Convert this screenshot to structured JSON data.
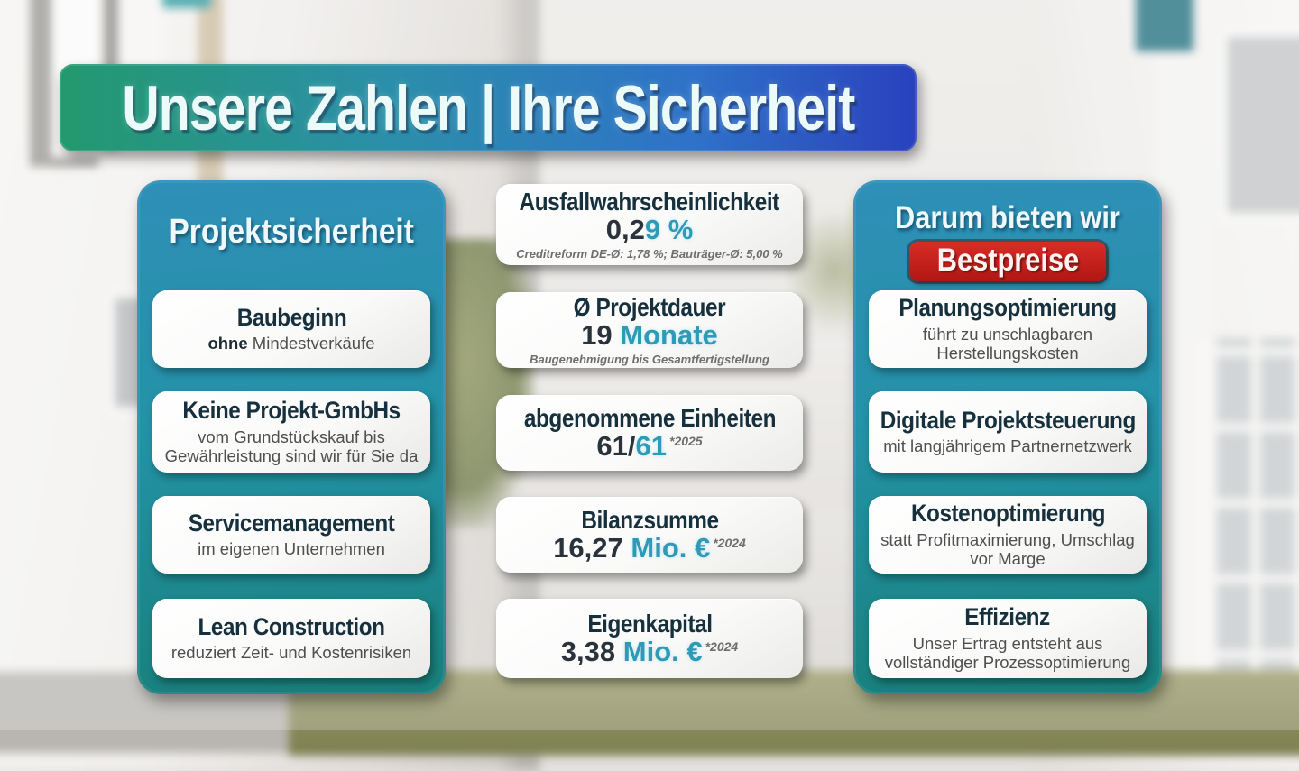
{
  "title": "Unsere Zahlen | Ihre Sicherheit",
  "colors": {
    "banner_gradient_start": "#23996e",
    "banner_gradient_end": "#2a41bd",
    "panel_gradient_top": "#2f8fb8",
    "panel_gradient_bottom": "#18807b",
    "card_heading_dark": "#16303d",
    "accent_teal": "#2e9ab6",
    "value_dark": "#2a323c",
    "badge_red": "#c5211f",
    "subtitle_gray": "#4f4f4f"
  },
  "left_panel": {
    "heading": "Projektsicherheit",
    "cards": [
      {
        "title": "Baubeginn",
        "subtitle_bold": "ohne",
        "subtitle": " Mindestverkäufe"
      },
      {
        "title": "Keine Projekt-GmbHs",
        "subtitle": "vom Grundstückskauf bis Gewährleistung sind wir für Sie da"
      },
      {
        "title": "Servicemanagement",
        "subtitle": "im eigenen Unternehmen"
      },
      {
        "title": "Lean Construction",
        "subtitle": "reduziert Zeit- und Kostenrisiken"
      }
    ]
  },
  "middle": {
    "cards": [
      {
        "title": "Ausfallwahrscheinlichkeit",
        "value_dark": "0,2",
        "value_accent": "9 %",
        "superscript": "",
        "footnote": "Creditreform DE-Ø: 1,78 %; Bauträger-Ø: 5,00 %"
      },
      {
        "title": "Ø Projektdauer",
        "value_dark": "19",
        "value_accent": " Monate",
        "superscript": "",
        "footnote": "Baugenehmigung bis Gesamtfertigstellung"
      },
      {
        "title": "abgenommene Einheiten",
        "value_dark": "61/",
        "value_accent": "61",
        "superscript": "*2025",
        "footnote": ""
      },
      {
        "title": "Bilanzsumme",
        "value_dark": "16,27",
        "value_accent": " Mio. €",
        "superscript": "*2024",
        "footnote": ""
      },
      {
        "title": "Eigenkapital",
        "value_dark": "3,38",
        "value_accent": " Mio. €",
        "superscript": "*2024",
        "footnote": ""
      }
    ]
  },
  "right_panel": {
    "heading_line1": "Darum bieten wir",
    "heading_badge": "Bestpreise",
    "cards": [
      {
        "title": "Planungsoptimierung",
        "subtitle": "führt zu unschlagbaren Herstellungskosten"
      },
      {
        "title": "Digitale Projektsteuerung",
        "subtitle": "mit langjährigem Partnernetzwerk"
      },
      {
        "title": "Kostenoptimierung",
        "subtitle": "statt Profitmaximierung, Umschlag vor Marge"
      },
      {
        "title": "Effizienz",
        "subtitle": "Unser Ertrag entsteht aus vollständiger Prozessoptimierung"
      }
    ]
  }
}
